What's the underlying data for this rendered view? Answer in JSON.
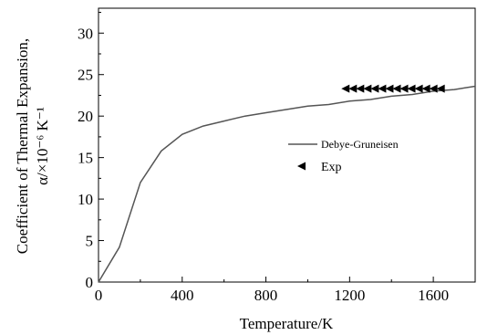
{
  "chart_data": {
    "type": "line",
    "xlabel": "Temperature/K",
    "ylabel_line1": "Coefficient of Thermal Expansion,",
    "ylabel_line2": "α/×10⁻⁶ K⁻¹",
    "xlim": [
      0,
      1800
    ],
    "ylim": [
      0,
      33
    ],
    "x_ticks": [
      0,
      400,
      800,
      1200,
      1600
    ],
    "y_ticks": [
      0,
      5,
      10,
      15,
      20,
      25,
      30
    ],
    "grid": false,
    "legend_position": "right-middle",
    "series": [
      {
        "name": "Debye-Gruneisen",
        "kind": "line",
        "color": "#555555",
        "x": [
          0,
          100,
          200,
          300,
          400,
          500,
          600,
          700,
          800,
          900,
          1000,
          1100,
          1200,
          1300,
          1400,
          1500,
          1600,
          1700,
          1800
        ],
        "y": [
          0,
          4.2,
          12.0,
          15.8,
          17.8,
          18.8,
          19.4,
          20.0,
          20.4,
          20.8,
          21.2,
          21.4,
          21.8,
          22.0,
          22.4,
          22.6,
          23.0,
          23.2,
          23.6
        ]
      },
      {
        "name": "Exp",
        "kind": "scatter",
        "marker": "left-triangle",
        "color": "#000000",
        "x": [
          1180,
          1215,
          1250,
          1285,
          1320,
          1355,
          1390,
          1425,
          1460,
          1495,
          1530,
          1565,
          1600,
          1635
        ],
        "y": [
          23.3,
          23.3,
          23.3,
          23.3,
          23.3,
          23.3,
          23.3,
          23.3,
          23.3,
          23.3,
          23.3,
          23.3,
          23.3,
          23.3
        ]
      }
    ]
  }
}
